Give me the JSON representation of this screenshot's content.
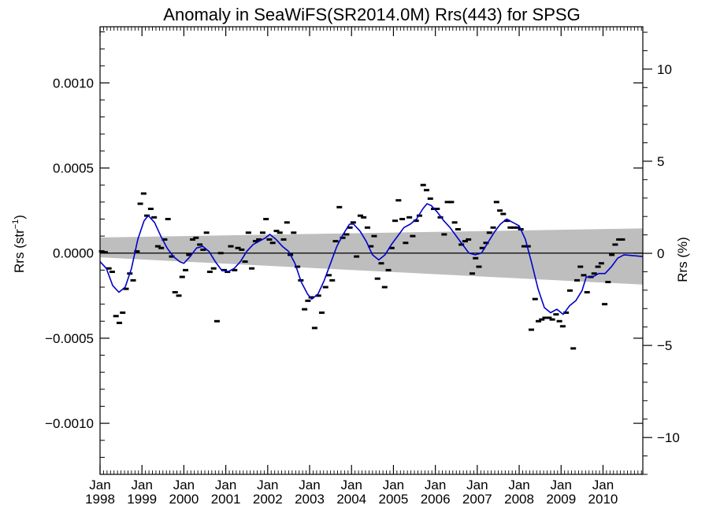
{
  "chart_data": {
    "type": "line",
    "title": "Anomaly in SeaWiFS(SR2014.0M) Rrs(443) for SPSG",
    "ylabel_main": "Rrs (str",
    "ylabel_sup": "−1",
    "ylabel_close": ")",
    "y2label": "Rrs (%)",
    "xlim": [
      1998.0,
      2010.95
    ],
    "ylim": [
      -0.0013,
      0.00133
    ],
    "y2lim": [
      -12,
      12.3
    ],
    "yticks": [
      {
        "value": 0.001,
        "label": "0.0010"
      },
      {
        "value": 0.0005,
        "label": "0.0005"
      },
      {
        "value": 0.0,
        "label": "0.0000"
      },
      {
        "value": -0.0005,
        "label": "−0.0005"
      },
      {
        "value": -0.001,
        "label": "−0.0010"
      }
    ],
    "y2ticks": [
      {
        "value": 10,
        "label": "10"
      },
      {
        "value": 5,
        "label": "5"
      },
      {
        "value": 0,
        "label": "0"
      },
      {
        "value": -5,
        "label": "−5"
      },
      {
        "value": -10,
        "label": "−10"
      }
    ],
    "xticks": [
      {
        "value": 1998,
        "month": "Jan",
        "year": "1998"
      },
      {
        "value": 1999,
        "month": "Jan",
        "year": "1999"
      },
      {
        "value": 2000,
        "month": "Jan",
        "year": "2000"
      },
      {
        "value": 2001,
        "month": "Jan",
        "year": "2001"
      },
      {
        "value": 2002,
        "month": "Jan",
        "year": "2002"
      },
      {
        "value": 2003,
        "month": "Jan",
        "year": "2003"
      },
      {
        "value": 2004,
        "month": "Jan",
        "year": "2004"
      },
      {
        "value": 2005,
        "month": "Jan",
        "year": "2005"
      },
      {
        "value": 2006,
        "month": "Jan",
        "year": "2006"
      },
      {
        "value": 2007,
        "month": "Jan",
        "year": "2007"
      },
      {
        "value": 2008,
        "month": "Jan",
        "year": "2008"
      },
      {
        "value": 2009,
        "month": "Jan",
        "year": "2009"
      },
      {
        "value": 2010,
        "month": "Jan",
        "year": "2010"
      }
    ],
    "trend_band": {
      "x": [
        1998.0,
        2010.95
      ],
      "upper": [
        9.2e-05,
        0.000145
      ],
      "lower": [
        -2.5e-05,
        -0.000185
      ],
      "color": "#bebebe"
    },
    "zero_line": 0.0,
    "monthly_points": [
      [
        1998.04,
        1e-05
      ],
      [
        1998.12,
        5e-06
      ],
      [
        1998.21,
        -9e-05
      ],
      [
        1998.29,
        -0.00011
      ],
      [
        1998.38,
        -0.00037
      ],
      [
        1998.46,
        -0.00041
      ],
      [
        1998.54,
        -0.00035
      ],
      [
        1998.62,
        -0.00021
      ],
      [
        1998.71,
        -0.00012
      ],
      [
        1998.79,
        -0.00016
      ],
      [
        1998.88,
        1e-05
      ],
      [
        1998.96,
        0.00029
      ],
      [
        1999.04,
        0.00035
      ],
      [
        1999.12,
        0.00022
      ],
      [
        1999.21,
        0.00026
      ],
      [
        1999.29,
        0.00021
      ],
      [
        1999.38,
        4e-05
      ],
      [
        1999.46,
        3e-05
      ],
      [
        1999.54,
        8e-05
      ],
      [
        1999.62,
        0.0002
      ],
      [
        1999.71,
        -2e-05
      ],
      [
        1999.79,
        -0.00023
      ],
      [
        1999.88,
        -0.00025
      ],
      [
        1999.96,
        -0.00014
      ],
      [
        2000.04,
        -0.0001
      ],
      [
        2000.12,
        -1e-05
      ],
      [
        2000.21,
        8e-05
      ],
      [
        2000.29,
        9e-05
      ],
      [
        2000.38,
        5e-05
      ],
      [
        2000.46,
        2e-05
      ],
      [
        2000.54,
        0.00012
      ],
      [
        2000.62,
        -0.00011
      ],
      [
        2000.71,
        -9e-05
      ],
      [
        2000.79,
        -0.0004
      ],
      [
        2000.88,
        0.0
      ],
      [
        2000.96,
        -0.0001
      ],
      [
        2001.04,
        -0.00011
      ],
      [
        2001.12,
        4e-05
      ],
      [
        2001.21,
        -0.0001
      ],
      [
        2001.29,
        3e-05
      ],
      [
        2001.38,
        2e-05
      ],
      [
        2001.46,
        -5e-05
      ],
      [
        2001.54,
        0.00012
      ],
      [
        2001.62,
        -9e-05
      ],
      [
        2001.71,
        7e-05
      ],
      [
        2001.79,
        8e-05
      ],
      [
        2001.88,
        0.00012
      ],
      [
        2001.96,
        0.0002
      ],
      [
        2002.04,
        8e-05
      ],
      [
        2002.12,
        6e-05
      ],
      [
        2002.21,
        0.00013
      ],
      [
        2002.29,
        0.00012
      ],
      [
        2002.38,
        8e-05
      ],
      [
        2002.46,
        0.00018
      ],
      [
        2002.54,
        -1e-05
      ],
      [
        2002.62,
        0.00012
      ],
      [
        2002.71,
        -8e-05
      ],
      [
        2002.79,
        -0.00016
      ],
      [
        2002.88,
        -0.00033
      ],
      [
        2002.96,
        -0.00028
      ],
      [
        2003.04,
        -0.00026
      ],
      [
        2003.12,
        -0.00044
      ],
      [
        2003.21,
        -0.00025
      ],
      [
        2003.29,
        -0.00035
      ],
      [
        2003.38,
        -0.0002
      ],
      [
        2003.46,
        -0.00013
      ],
      [
        2003.54,
        -0.00016
      ],
      [
        2003.62,
        7e-05
      ],
      [
        2003.71,
        0.00027
      ],
      [
        2003.79,
        9e-05
      ],
      [
        2003.88,
        0.00011
      ],
      [
        2003.96,
        0.00015
      ],
      [
        2004.04,
        0.00018
      ],
      [
        2004.12,
        -2e-05
      ],
      [
        2004.21,
        0.00022
      ],
      [
        2004.29,
        0.00021
      ],
      [
        2004.38,
        0.00015
      ],
      [
        2004.46,
        4e-05
      ],
      [
        2004.54,
        0.0001
      ],
      [
        2004.62,
        -0.00015
      ],
      [
        2004.71,
        -6e-05
      ],
      [
        2004.79,
        -0.0002
      ],
      [
        2004.88,
        -0.0001
      ],
      [
        2004.96,
        3e-05
      ],
      [
        2005.04,
        0.00019
      ],
      [
        2005.12,
        0.00031
      ],
      [
        2005.21,
        0.0002
      ],
      [
        2005.29,
        6e-05
      ],
      [
        2005.38,
        0.00021
      ],
      [
        2005.46,
        0.0001
      ],
      [
        2005.54,
        0.00019
      ],
      [
        2005.62,
        0.00022
      ],
      [
        2005.71,
        0.0004
      ],
      [
        2005.79,
        0.00037
      ],
      [
        2005.88,
        0.00032
      ],
      [
        2005.96,
        0.00026
      ],
      [
        2006.04,
        0.00026
      ],
      [
        2006.12,
        0.00021
      ],
      [
        2006.21,
        0.00011
      ],
      [
        2006.29,
        0.0003
      ],
      [
        2006.38,
        0.0003
      ],
      [
        2006.46,
        0.00018
      ],
      [
        2006.54,
        0.00014
      ],
      [
        2006.62,
        5e-05
      ],
      [
        2006.71,
        7e-05
      ],
      [
        2006.79,
        8e-05
      ],
      [
        2006.88,
        -0.00012
      ],
      [
        2006.96,
        -3e-05
      ],
      [
        2007.04,
        -8e-05
      ],
      [
        2007.12,
        3e-05
      ],
      [
        2007.21,
        6e-05
      ],
      [
        2007.29,
        0.00012
      ],
      [
        2007.38,
        0.00015
      ],
      [
        2007.46,
        0.0003
      ],
      [
        2007.54,
        0.00025
      ],
      [
        2007.62,
        0.00023
      ],
      [
        2007.71,
        0.00019
      ],
      [
        2007.79,
        0.00015
      ],
      [
        2007.88,
        0.00015
      ],
      [
        2007.96,
        0.00015
      ],
      [
        2008.04,
        0.00014
      ],
      [
        2008.12,
        4e-05
      ],
      [
        2008.21,
        4e-05
      ],
      [
        2008.29,
        -0.00045
      ],
      [
        2008.38,
        -0.00027
      ],
      [
        2008.46,
        -0.0004
      ],
      [
        2008.54,
        -0.00039
      ],
      [
        2008.62,
        -0.00038
      ],
      [
        2008.71,
        -0.00038
      ],
      [
        2008.79,
        -0.00039
      ],
      [
        2008.88,
        -0.00036
      ],
      [
        2008.96,
        -0.0004
      ],
      [
        2009.04,
        -0.00043
      ],
      [
        2009.12,
        -0.00035
      ],
      [
        2009.21,
        -0.00022
      ],
      [
        2009.29,
        -0.00056
      ],
      [
        2009.38,
        -0.00016
      ],
      [
        2009.46,
        -8e-05
      ],
      [
        2009.54,
        -0.00013
      ],
      [
        2009.62,
        -0.00023
      ],
      [
        2009.71,
        -0.00014
      ],
      [
        2009.79,
        -0.00012
      ],
      [
        2009.88,
        -8e-05
      ],
      [
        2009.96,
        -6e-05
      ],
      [
        2010.04,
        -0.0003
      ],
      [
        2010.12,
        -0.00017
      ],
      [
        2010.21,
        -1e-05
      ],
      [
        2010.29,
        5e-05
      ],
      [
        2010.38,
        8e-05
      ],
      [
        2010.46,
        8e-05
      ]
    ],
    "smoothed_line": {
      "color": "#0000cc",
      "points": [
        [
          1998.0,
          -5e-05
        ],
        [
          1998.15,
          -9e-05
        ],
        [
          1998.3,
          -0.00019
        ],
        [
          1998.45,
          -0.00023
        ],
        [
          1998.6,
          -0.0002
        ],
        [
          1998.75,
          -9e-05
        ],
        [
          1998.9,
          8e-05
        ],
        [
          1999.05,
          0.00019
        ],
        [
          1999.15,
          0.00022
        ],
        [
          1999.3,
          0.00018
        ],
        [
          1999.45,
          0.0001
        ],
        [
          1999.6,
          3e-05
        ],
        [
          1999.75,
          -2e-05
        ],
        [
          1999.9,
          -5e-05
        ],
        [
          2000.0,
          -6e-05
        ],
        [
          2000.15,
          -2e-05
        ],
        [
          2000.3,
          3e-05
        ],
        [
          2000.45,
          4e-05
        ],
        [
          2000.6,
          1e-05
        ],
        [
          2000.75,
          -5e-05
        ],
        [
          2000.9,
          -0.0001
        ],
        [
          2001.05,
          -0.00011
        ],
        [
          2001.2,
          -9e-05
        ],
        [
          2001.35,
          -5e-05
        ],
        [
          2001.5,
          1e-05
        ],
        [
          2001.65,
          5e-05
        ],
        [
          2001.8,
          7e-05
        ],
        [
          2001.95,
          9e-05
        ],
        [
          2002.05,
          0.00011
        ],
        [
          2002.2,
          8e-05
        ],
        [
          2002.35,
          4e-05
        ],
        [
          2002.5,
          1e-05
        ],
        [
          2002.65,
          -6e-05
        ],
        [
          2002.8,
          -0.00017
        ],
        [
          2002.95,
          -0.00024
        ],
        [
          2003.05,
          -0.00027
        ],
        [
          2003.2,
          -0.00024
        ],
        [
          2003.35,
          -0.00016
        ],
        [
          2003.5,
          -6e-05
        ],
        [
          2003.65,
          4e-05
        ],
        [
          2003.8,
          0.00011
        ],
        [
          2003.95,
          0.00017
        ],
        [
          2004.05,
          0.00017
        ],
        [
          2004.2,
          0.00013
        ],
        [
          2004.35,
          7e-05
        ],
        [
          2004.5,
          -1e-05
        ],
        [
          2004.65,
          -4e-05
        ],
        [
          2004.8,
          -1e-05
        ],
        [
          2004.95,
          5e-05
        ],
        [
          2005.1,
          0.0001
        ],
        [
          2005.25,
          0.00015
        ],
        [
          2005.4,
          0.00017
        ],
        [
          2005.55,
          0.0002
        ],
        [
          2005.7,
          0.00026
        ],
        [
          2005.8,
          0.00029
        ],
        [
          2005.9,
          0.00028
        ],
        [
          2006.05,
          0.00024
        ],
        [
          2006.2,
          0.00019
        ],
        [
          2006.35,
          0.00015
        ],
        [
          2006.5,
          0.0001
        ],
        [
          2006.65,
          5e-05
        ],
        [
          2006.8,
          0.0
        ],
        [
          2006.95,
          -1e-05
        ],
        [
          2007.1,
          0.0
        ],
        [
          2007.25,
          6e-05
        ],
        [
          2007.4,
          0.00012
        ],
        [
          2007.55,
          0.00017
        ],
        [
          2007.7,
          0.0002
        ],
        [
          2007.85,
          0.00018
        ],
        [
          2008.0,
          0.00016
        ],
        [
          2008.15,
          8e-05
        ],
        [
          2008.3,
          -6e-05
        ],
        [
          2008.45,
          -0.00021
        ],
        [
          2008.6,
          -0.00032
        ],
        [
          2008.75,
          -0.00035
        ],
        [
          2008.9,
          -0.00033
        ],
        [
          2009.05,
          -0.00036
        ],
        [
          2009.2,
          -0.00031
        ],
        [
          2009.35,
          -0.00028
        ],
        [
          2009.5,
          -0.00022
        ],
        [
          2009.6,
          -0.00014
        ],
        [
          2009.75,
          -0.00014
        ],
        [
          2009.9,
          -0.00012
        ],
        [
          2010.05,
          -0.00012
        ],
        [
          2010.2,
          -8e-05
        ],
        [
          2010.35,
          -3e-05
        ],
        [
          2010.5,
          -1e-05
        ],
        [
          2010.95,
          -2e-05
        ]
      ]
    }
  }
}
